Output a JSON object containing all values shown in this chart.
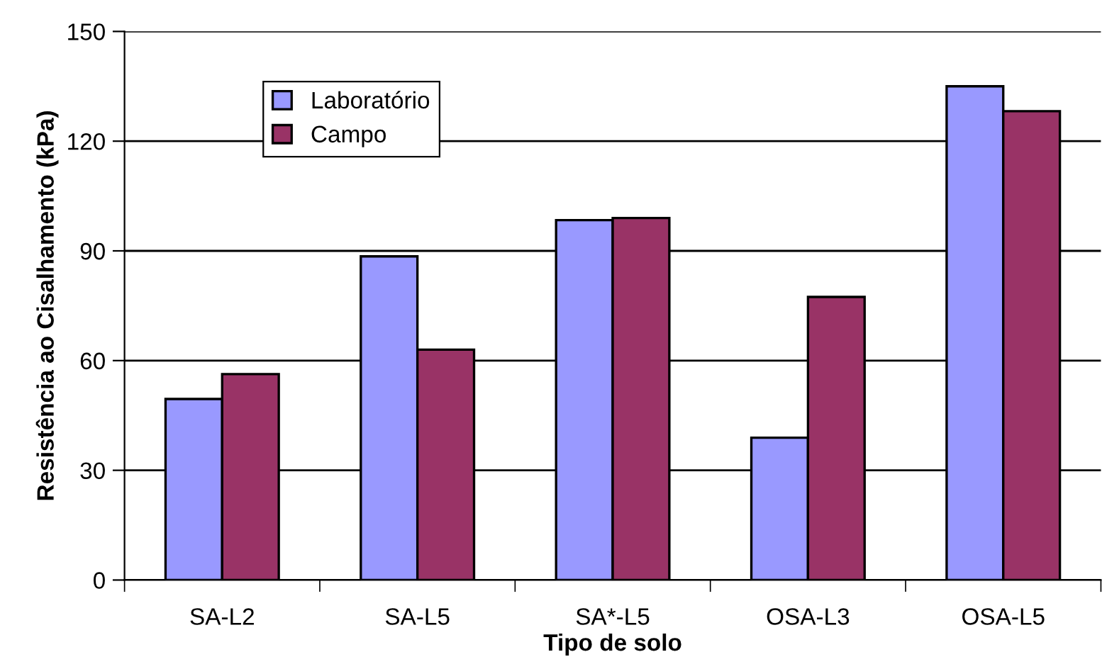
{
  "chart_data": {
    "type": "bar",
    "xlabel": "Tipo de solo",
    "ylabel": "Resistência ao Cisalhamento (kPa)",
    "categories": [
      "SA-L2",
      "SA-L5",
      "SA*-L5",
      "OSA-L3",
      "OSA-L5"
    ],
    "series": [
      {
        "name": "Laboratório",
        "color": "#9999ff",
        "values": [
          49.5,
          88.5,
          98.4,
          38.9,
          135.0
        ]
      },
      {
        "name": "Campo",
        "color": "#993366",
        "values": [
          56.3,
          63.0,
          99.0,
          77.4,
          128.2
        ]
      }
    ],
    "ylim": [
      0,
      150
    ],
    "yticks": [
      0,
      30,
      60,
      90,
      120,
      150
    ],
    "grid": "y",
    "legend": "top left"
  }
}
